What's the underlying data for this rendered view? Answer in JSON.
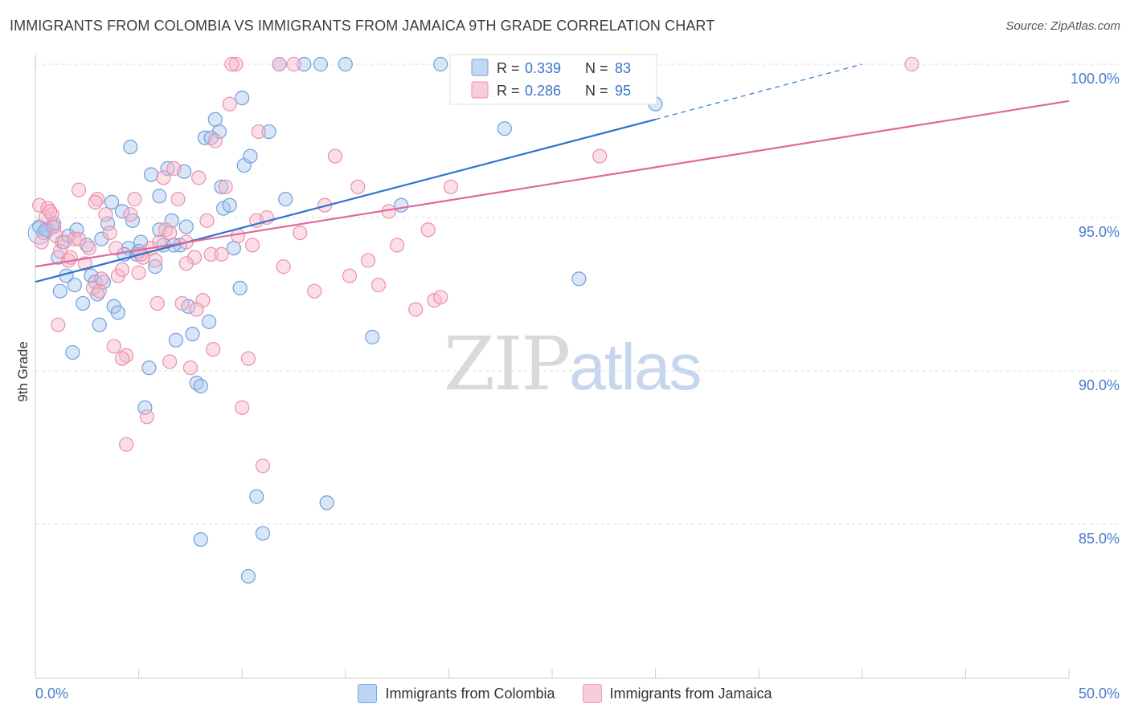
{
  "title": "IMMIGRANTS FROM COLOMBIA VS IMMIGRANTS FROM JAMAICA 9TH GRADE CORRELATION CHART",
  "source": "Source: ZipAtlas.com",
  "watermark": {
    "zip": "ZIP",
    "atlas": "atlas"
  },
  "colors": {
    "colombia_fill": "#a9c8f0",
    "colombia_stroke": "#6f9fdc",
    "colombia_line": "#2f74cf",
    "jamaica_fill": "#f6b7c9",
    "jamaica_stroke": "#ec8fab",
    "jamaica_line": "#e0689a",
    "tick_label": "#4a7cc9",
    "grid": "#dddddd"
  },
  "legend": {
    "r_label": "R =",
    "n_label": "N =",
    "series": [
      {
        "r": "0.339",
        "n": "83"
      },
      {
        "r": "0.286",
        "n": "95"
      }
    ]
  },
  "bottom_legend": [
    "Immigrants from Colombia",
    "Immigrants from Jamaica"
  ],
  "chart_data": {
    "type": "scatter",
    "title": "IMMIGRANTS FROM COLOMBIA VS IMMIGRANTS FROM JAMAICA 9TH GRADE CORRELATION CHART",
    "xlabel": "",
    "ylabel": "9th Grade",
    "xlim": [
      0,
      50
    ],
    "ylim": [
      80.2,
      100.5
    ],
    "x_tick_labels": [
      "0.0%",
      "50.0%"
    ],
    "y_ticks": [
      85,
      90,
      95,
      100
    ],
    "y_tick_labels": [
      "85.0%",
      "90.0%",
      "95.0%",
      "100.0%"
    ],
    "grid": true,
    "legend_position": "top-center",
    "series": [
      {
        "name": "Immigrants from Colombia",
        "r": 0.339,
        "n": 83,
        "trend": {
          "x0": 0,
          "y0": 92.9,
          "x1": 30,
          "y1": 98.2,
          "dashed_to_x": 40,
          "dashed_to_y": 100.0
        },
        "points": [
          [
            0.2,
            94.7
          ],
          [
            0.4,
            94.5
          ],
          [
            0.6,
            94.6
          ],
          [
            0.9,
            94.8
          ],
          [
            1.1,
            93.7
          ],
          [
            1.3,
            94.2
          ],
          [
            1.5,
            93.1
          ],
          [
            1.2,
            92.6
          ],
          [
            1.9,
            92.8
          ],
          [
            2.3,
            92.2
          ],
          [
            2.5,
            94.1
          ],
          [
            2.7,
            93.1
          ],
          [
            3.0,
            92.5
          ],
          [
            3.2,
            94.3
          ],
          [
            3.5,
            94.8
          ],
          [
            3.7,
            95.5
          ],
          [
            3.8,
            92.1
          ],
          [
            4.0,
            91.9
          ],
          [
            4.2,
            95.2
          ],
          [
            4.5,
            94.0
          ],
          [
            4.6,
            97.3
          ],
          [
            4.7,
            94.9
          ],
          [
            4.9,
            93.8
          ],
          [
            5.1,
            94.2
          ],
          [
            5.3,
            88.8
          ],
          [
            5.5,
            90.1
          ],
          [
            5.6,
            96.4
          ],
          [
            5.8,
            93.4
          ],
          [
            6.0,
            95.7
          ],
          [
            6.2,
            94.1
          ],
          [
            6.4,
            96.6
          ],
          [
            6.6,
            94.9
          ],
          [
            6.8,
            91.0
          ],
          [
            7.0,
            94.1
          ],
          [
            7.2,
            96.5
          ],
          [
            7.4,
            92.1
          ],
          [
            7.6,
            91.2
          ],
          [
            7.8,
            89.6
          ],
          [
            8.0,
            89.5
          ],
          [
            8.2,
            97.6
          ],
          [
            8.4,
            91.6
          ],
          [
            8.7,
            98.2
          ],
          [
            8.9,
            97.8
          ],
          [
            9.1,
            95.3
          ],
          [
            9.4,
            95.4
          ],
          [
            9.6,
            94.0
          ],
          [
            9.9,
            92.7
          ],
          [
            10.1,
            96.7
          ],
          [
            10.4,
            97.0
          ],
          [
            10.7,
            85.9
          ],
          [
            11.0,
            84.7
          ],
          [
            11.3,
            97.8
          ],
          [
            12.1,
            95.6
          ],
          [
            13.0,
            100.0
          ],
          [
            13.8,
            100.0
          ],
          [
            14.1,
            85.7
          ],
          [
            15.0,
            100.0
          ],
          [
            16.3,
            91.1
          ],
          [
            17.7,
            95.4
          ],
          [
            19.6,
            100.0
          ],
          [
            22.7,
            97.9
          ],
          [
            26.3,
            93.0
          ],
          [
            30.0,
            98.7
          ],
          [
            1.8,
            90.6
          ],
          [
            3.1,
            91.5
          ],
          [
            10.3,
            83.3
          ],
          [
            8.0,
            84.5
          ],
          [
            2.0,
            94.6
          ],
          [
            0.8,
            94.7
          ],
          [
            6.0,
            94.6
          ],
          [
            4.3,
            93.8
          ],
          [
            11.8,
            100.0
          ],
          [
            21.2,
            100.0
          ],
          [
            7.3,
            94.7
          ],
          [
            5.0,
            93.9
          ],
          [
            9.0,
            96.0
          ],
          [
            2.9,
            92.9
          ],
          [
            1.6,
            94.4
          ],
          [
            0.5,
            94.6
          ],
          [
            3.3,
            92.9
          ],
          [
            6.7,
            94.1
          ],
          [
            10.0,
            98.9
          ],
          [
            8.5,
            97.6
          ]
        ]
      },
      {
        "name": "Immigrants from Jamaica",
        "r": 0.286,
        "n": 95,
        "trend": {
          "x0": 0,
          "y0": 93.4,
          "x1": 50,
          "y1": 98.8
        },
        "points": [
          [
            0.2,
            95.4
          ],
          [
            0.3,
            94.2
          ],
          [
            0.5,
            95.0
          ],
          [
            0.6,
            95.3
          ],
          [
            0.8,
            95.1
          ],
          [
            0.9,
            94.7
          ],
          [
            1.0,
            94.4
          ],
          [
            1.2,
            93.9
          ],
          [
            1.4,
            94.2
          ],
          [
            1.6,
            93.6
          ],
          [
            1.9,
            94.3
          ],
          [
            2.1,
            95.9
          ],
          [
            2.4,
            93.5
          ],
          [
            2.6,
            94.0
          ],
          [
            2.8,
            92.7
          ],
          [
            3.0,
            95.6
          ],
          [
            3.2,
            93.0
          ],
          [
            3.4,
            95.1
          ],
          [
            3.6,
            94.5
          ],
          [
            3.8,
            90.8
          ],
          [
            4.0,
            93.1
          ],
          [
            4.2,
            93.3
          ],
          [
            4.4,
            90.5
          ],
          [
            4.6,
            95.1
          ],
          [
            4.8,
            95.6
          ],
          [
            5.0,
            93.2
          ],
          [
            5.2,
            93.7
          ],
          [
            5.4,
            88.5
          ],
          [
            5.6,
            94.0
          ],
          [
            5.8,
            93.6
          ],
          [
            6.0,
            94.2
          ],
          [
            6.3,
            94.6
          ],
          [
            6.5,
            90.3
          ],
          [
            6.7,
            96.6
          ],
          [
            6.9,
            95.6
          ],
          [
            7.1,
            92.2
          ],
          [
            7.3,
            94.2
          ],
          [
            7.5,
            90.1
          ],
          [
            7.7,
            93.7
          ],
          [
            7.9,
            96.3
          ],
          [
            8.1,
            92.3
          ],
          [
            8.3,
            94.9
          ],
          [
            8.5,
            93.8
          ],
          [
            8.7,
            97.5
          ],
          [
            9.0,
            93.8
          ],
          [
            9.2,
            96.0
          ],
          [
            9.4,
            98.7
          ],
          [
            9.7,
            100.0
          ],
          [
            10.0,
            88.8
          ],
          [
            10.3,
            90.4
          ],
          [
            10.7,
            94.9
          ],
          [
            11.0,
            86.9
          ],
          [
            12.0,
            93.4
          ],
          [
            12.5,
            100.0
          ],
          [
            13.5,
            92.6
          ],
          [
            14.0,
            95.4
          ],
          [
            14.5,
            97.0
          ],
          [
            15.2,
            93.1
          ],
          [
            15.6,
            96.0
          ],
          [
            16.1,
            93.6
          ],
          [
            16.6,
            92.8
          ],
          [
            17.1,
            95.2
          ],
          [
            17.5,
            94.1
          ],
          [
            18.4,
            92.0
          ],
          [
            19.0,
            94.6
          ],
          [
            19.3,
            92.3
          ],
          [
            19.6,
            92.4
          ],
          [
            20.1,
            96.0
          ],
          [
            27.3,
            97.0
          ],
          [
            42.4,
            100.0
          ],
          [
            1.1,
            91.5
          ],
          [
            3.9,
            94.0
          ],
          [
            4.4,
            87.6
          ],
          [
            7.3,
            93.5
          ],
          [
            2.1,
            94.3
          ],
          [
            6.2,
            96.3
          ],
          [
            9.8,
            94.4
          ],
          [
            12.8,
            94.5
          ],
          [
            11.2,
            95.0
          ],
          [
            8.6,
            90.7
          ],
          [
            4.2,
            90.4
          ],
          [
            5.9,
            92.2
          ],
          [
            3.1,
            92.6
          ],
          [
            2.9,
            95.5
          ],
          [
            10.5,
            94.1
          ],
          [
            1.7,
            93.7
          ],
          [
            0.7,
            95.2
          ],
          [
            6.5,
            94.5
          ],
          [
            5.1,
            93.8
          ],
          [
            7.8,
            92.0
          ],
          [
            9.5,
            100.0
          ],
          [
            10.8,
            97.8
          ],
          [
            11.8,
            100.0
          ],
          [
            26.1,
            100.0
          ],
          [
            20.7,
            100.0
          ]
        ]
      }
    ]
  }
}
